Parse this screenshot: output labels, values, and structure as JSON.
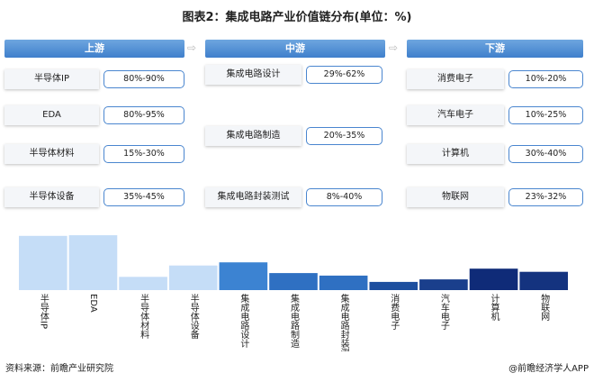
{
  "title": "图表2：集成电路产业价值链分布(单位：%)",
  "stages": [
    {
      "name": "上游",
      "items": [
        {
          "label": "半导体IP",
          "range": "80%-90%"
        },
        {
          "label": "EDA",
          "range": "80%-95%"
        },
        {
          "label": "半导体材料",
          "range": "15%-30%"
        },
        {
          "label": "半导体设备",
          "range": "35%-45%"
        }
      ]
    },
    {
      "name": "中游",
      "items": [
        {
          "label": "集成电路设计",
          "range": "29%-62%"
        },
        {
          "label": "集成电路制造",
          "range": "20%-35%"
        },
        {
          "label": "集成电路封装测试",
          "range": "8%-40%"
        }
      ]
    },
    {
      "name": "下游",
      "items": [
        {
          "label": "消费电子",
          "range": "10%-20%"
        },
        {
          "label": "汽车电子",
          "range": "10%-25%"
        },
        {
          "label": "计算机",
          "range": "30%-40%"
        },
        {
          "label": "物联网",
          "range": "23%-32%"
        }
      ]
    }
  ],
  "chart_data": {
    "type": "bar",
    "categories": [
      "半导体IP",
      "EDA",
      "半导体材料",
      "半导体设备",
      "集成电路设计",
      "集成电路制造",
      "集成电路封装测试",
      "消费电子",
      "汽车电子",
      "计算机",
      "物联网"
    ],
    "values": [
      86,
      87,
      21,
      39,
      44,
      27,
      23,
      13,
      17,
      34,
      29
    ],
    "colors": [
      "#c5ddf7",
      "#c5ddf7",
      "#c5ddf7",
      "#c5ddf7",
      "#3c83d2",
      "#2f70c2",
      "#2f70c2",
      "#1d4f9f",
      "#1a3f8c",
      "#0f2b78",
      "#14337f"
    ],
    "ylim": [
      0,
      100
    ]
  },
  "footer": {
    "source": "资料来源：前瞻产业研究院",
    "brand": "@前瞻经济学人APP"
  }
}
